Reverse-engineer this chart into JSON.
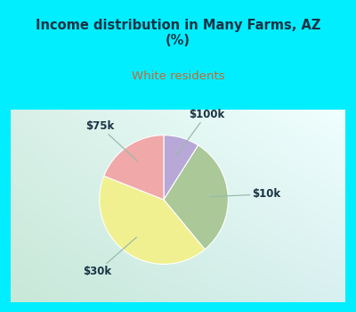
{
  "title": "Income distribution in Many Farms, AZ\n(%)",
  "subtitle": "White residents",
  "title_color": "#1a3344",
  "subtitle_color": "#cc6633",
  "bg_color": "#00eeff",
  "chart_box_color_tl": "#c8e8d8",
  "chart_box_color_br": "#e8f8f4",
  "labels": [
    "$100k",
    "$10k",
    "$30k",
    "$75k"
  ],
  "sizes": [
    9,
    30,
    42,
    19
  ],
  "colors": [
    "#b8a8d8",
    "#aac898",
    "#f0f090",
    "#f0a8a8"
  ],
  "start_angle": 90,
  "label_fontsize": 8.5,
  "label_color": "#1a3344",
  "wedge_edge_color": "white",
  "wedge_lw": 0.8
}
